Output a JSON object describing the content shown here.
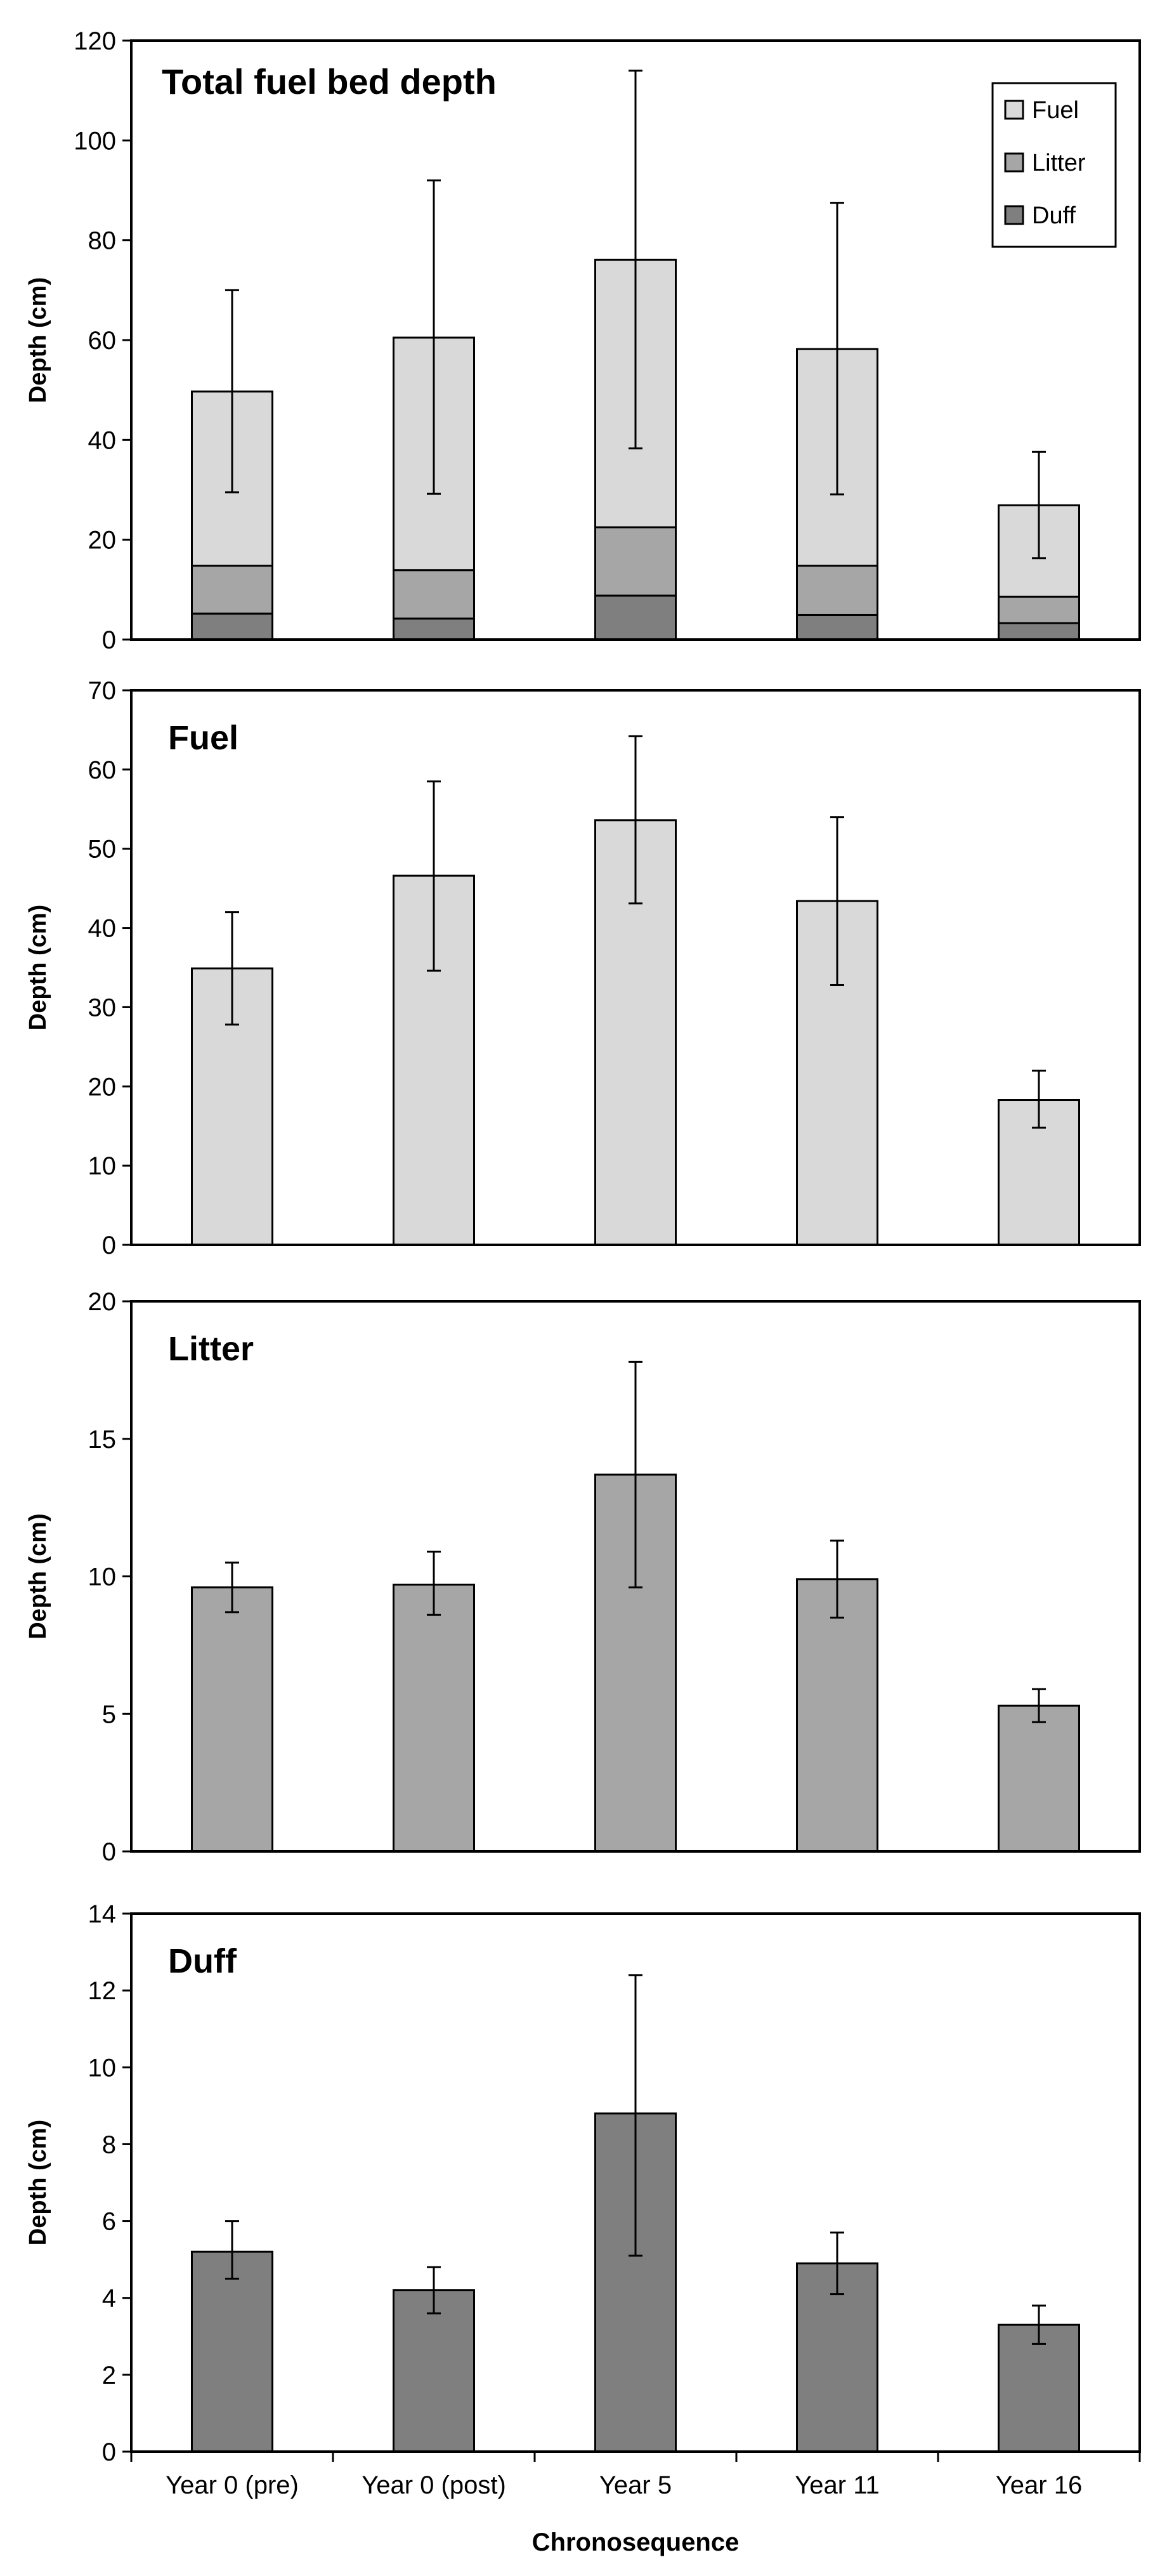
{
  "colors": {
    "fuel": "#d9d9d9",
    "litter": "#a6a6a6",
    "duff": "#7f7f7f",
    "stroke": "#000000"
  },
  "xaxis": {
    "label": "Chronosequence",
    "categories": [
      "Year 0 (pre)",
      "Year 0 (post)",
      "Year 5",
      "Year 11",
      "Year 16"
    ]
  },
  "chart_data": [
    {
      "type": "bar",
      "stacked": true,
      "title": "Total fuel bed depth",
      "ylabel": "Depth (cm)",
      "ylim": [
        0,
        120
      ],
      "yticks": [
        0,
        20,
        40,
        60,
        80,
        100,
        120
      ],
      "categories": [
        "Year 0 (pre)",
        "Year 0 (post)",
        "Year 5",
        "Year 11",
        "Year 16"
      ],
      "series": [
        {
          "name": "Duff",
          "values": [
            5.2,
            4.2,
            8.8,
            4.9,
            3.3
          ]
        },
        {
          "name": "Litter",
          "values": [
            9.6,
            9.7,
            13.7,
            9.9,
            5.3
          ]
        },
        {
          "name": "Fuel",
          "values": [
            34.9,
            46.6,
            53.6,
            43.4,
            18.3
          ]
        }
      ],
      "totals": [
        49.7,
        60.5,
        76.1,
        58.2,
        26.9
      ],
      "error_bars": [
        [
          29.5,
          70.0
        ],
        [
          29.2,
          92.0
        ],
        [
          38.3,
          114.0
        ],
        [
          29.1,
          87.5
        ],
        [
          16.3,
          37.6
        ]
      ],
      "legend": {
        "position": "top-right",
        "entries": [
          "Fuel",
          "Litter",
          "Duff"
        ]
      },
      "grid": false
    },
    {
      "type": "bar",
      "title": "Fuel",
      "ylabel": "Depth (cm)",
      "ylim": [
        0,
        70
      ],
      "yticks": [
        0,
        10,
        20,
        30,
        40,
        50,
        60,
        70
      ],
      "categories": [
        "Year 0 (pre)",
        "Year 0 (post)",
        "Year 5",
        "Year 11",
        "Year 16"
      ],
      "values": [
        34.9,
        46.6,
        53.6,
        43.4,
        18.3
      ],
      "error_bars": [
        [
          27.8,
          42.0
        ],
        [
          34.6,
          58.5
        ],
        [
          43.1,
          64.2
        ],
        [
          32.8,
          54.0
        ],
        [
          14.8,
          22.0
        ]
      ],
      "grid": false
    },
    {
      "type": "bar",
      "title": "Litter",
      "ylabel": "Depth (cm)",
      "ylim": [
        0,
        20
      ],
      "yticks": [
        0,
        5,
        10,
        15,
        20
      ],
      "categories": [
        "Year 0 (pre)",
        "Year 0 (post)",
        "Year 5",
        "Year 11",
        "Year 16"
      ],
      "values": [
        9.6,
        9.7,
        13.7,
        9.9,
        5.3
      ],
      "error_bars": [
        [
          8.7,
          10.5
        ],
        [
          8.6,
          10.9
        ],
        [
          9.6,
          17.8
        ],
        [
          8.5,
          11.3
        ],
        [
          4.7,
          5.9
        ]
      ],
      "grid": false
    },
    {
      "type": "bar",
      "title": "Duff",
      "ylabel": "Depth (cm)",
      "ylim": [
        0,
        14
      ],
      "yticks": [
        0,
        2,
        4,
        6,
        8,
        10,
        12,
        14
      ],
      "categories": [
        "Year 0 (pre)",
        "Year 0 (post)",
        "Year 5",
        "Year 11",
        "Year 16"
      ],
      "values": [
        5.2,
        4.2,
        8.8,
        4.9,
        3.3
      ],
      "error_bars": [
        [
          4.5,
          6.0
        ],
        [
          3.6,
          4.8
        ],
        [
          5.1,
          12.4
        ],
        [
          4.1,
          5.7
        ],
        [
          2.8,
          3.8
        ]
      ],
      "grid": false
    }
  ]
}
